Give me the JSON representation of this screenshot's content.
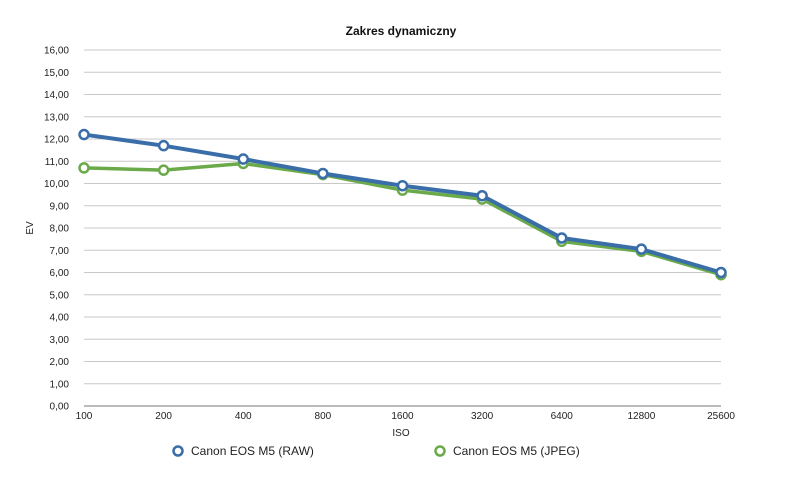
{
  "chart_data": {
    "type": "line",
    "title": "Zakres dynamiczny",
    "xlabel": "ISO",
    "ylabel": "EV",
    "categories": [
      "100",
      "200",
      "400",
      "800",
      "1600",
      "3200",
      "6400",
      "12800",
      "25600"
    ],
    "ylim": [
      0,
      16
    ],
    "ytick_step": 1,
    "ytick_labels": [
      "0,00",
      "1,00",
      "2,00",
      "3,00",
      "4,00",
      "5,00",
      "6,00",
      "7,00",
      "8,00",
      "9,00",
      "10,00",
      "11,00",
      "12,00",
      "13,00",
      "14,00",
      "15,00",
      "16,00"
    ],
    "grid": true,
    "legend_position": "bottom",
    "series": [
      {
        "name": "Canon EOS M5 (RAW)",
        "color": "#3a6ea8",
        "values": [
          12.2,
          11.7,
          11.1,
          10.45,
          9.9,
          9.45,
          7.55,
          7.05,
          6.0
        ]
      },
      {
        "name": "Canon EOS M5 (JPEG)",
        "color": "#6aaa4a",
        "values": [
          10.7,
          10.6,
          10.9,
          10.4,
          9.7,
          9.3,
          7.4,
          6.95,
          5.9
        ]
      }
    ]
  }
}
